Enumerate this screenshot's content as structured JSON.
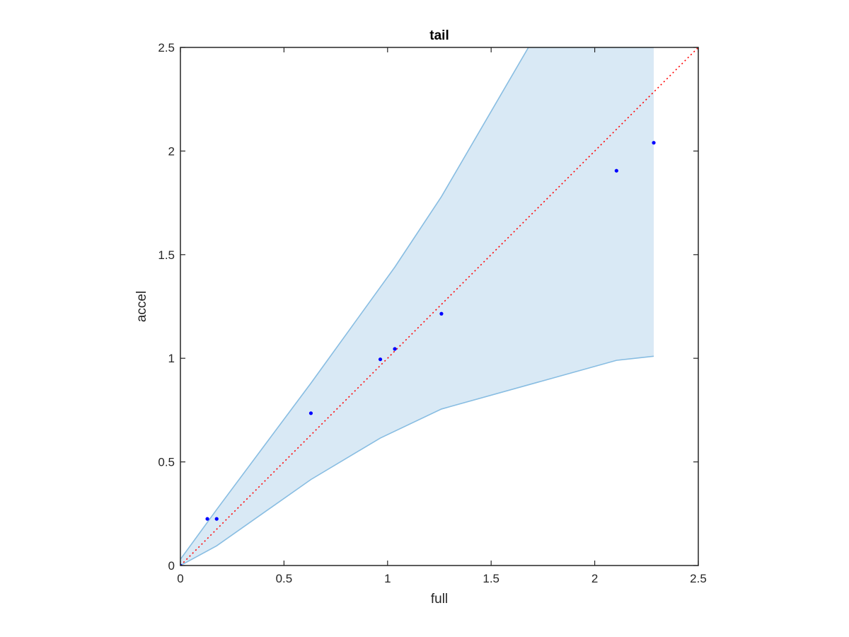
{
  "chart_data": {
    "type": "scatter",
    "title": "tail",
    "xlabel": "full",
    "ylabel": "accel",
    "xlim": [
      0,
      2.5
    ],
    "ylim": [
      0,
      2.5
    ],
    "grid": false,
    "x_ticks": [
      "0",
      "0.5",
      "1",
      "1.5",
      "2",
      "2.5"
    ],
    "y_ticks": [
      "0",
      "0.5",
      "1",
      "1.5",
      "2",
      "2.5"
    ],
    "points": {
      "x": [
        0,
        0.13,
        0.175,
        0.63,
        0.965,
        1.035,
        1.26,
        2.105,
        2.285
      ],
      "y": [
        0,
        0.225,
        0.225,
        0.735,
        0.995,
        1.045,
        1.215,
        1.905,
        2.04
      ],
      "color": "#0000ff"
    },
    "band": {
      "upper": [
        [
          0,
          0.03
        ],
        [
          0.175,
          0.27
        ],
        [
          0.63,
          0.88
        ],
        [
          1.035,
          1.44
        ],
        [
          1.26,
          1.78
        ],
        [
          1.68,
          2.5
        ],
        [
          2.285,
          2.5
        ]
      ],
      "lower": [
        [
          0,
          0
        ],
        [
          0.175,
          0.095
        ],
        [
          0.63,
          0.415
        ],
        [
          0.965,
          0.615
        ],
        [
          1.26,
          0.755
        ],
        [
          2.105,
          0.99
        ],
        [
          2.285,
          1.01
        ]
      ],
      "fill_color": "#d9e9f5",
      "edge_color": "#88bde2"
    },
    "reference_line": {
      "from": [
        0,
        0
      ],
      "to": [
        2.5,
        2.5
      ],
      "color": "#ff0000",
      "style": "dotted"
    }
  }
}
